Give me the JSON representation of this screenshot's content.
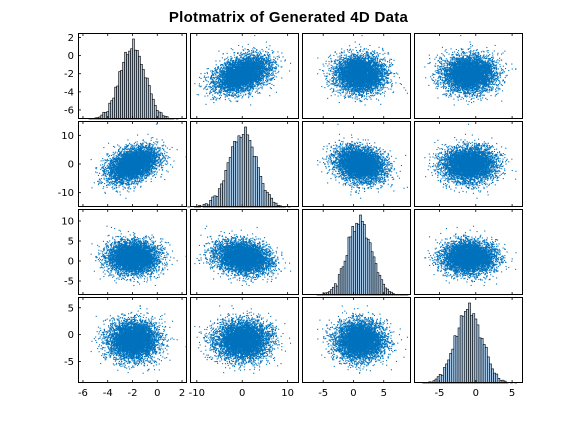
{
  "title": "Plotmatrix of Generated 4D Data",
  "colors": {
    "scatter": "#0072bd",
    "hist_fill": "#a6c8e8",
    "hist_edge": "#000000",
    "axis": "#000000",
    "background": "#ffffff"
  },
  "chart_data": {
    "type": "scatter",
    "title": "Plotmatrix of Generated 4D Data",
    "grid": false,
    "legend": "none",
    "variables": [
      {
        "mean": -2,
        "sd": 1.0,
        "xlim": [
          -6.4,
          2.4
        ],
        "xticks": [
          "-6",
          "-4",
          "-2",
          "0",
          "2"
        ],
        "ylim": [
          -7,
          2.5
        ],
        "yticks": [
          "2",
          "0",
          "-2",
          "-4",
          "-6"
        ]
      },
      {
        "mean": 0,
        "sd": 3.0,
        "xlim": [
          -11.5,
          12.5
        ],
        "xticks": [
          "-10",
          "0",
          "10"
        ],
        "ylim": [
          -15,
          15
        ],
        "yticks": [
          "10",
          "0",
          "-10"
        ]
      },
      {
        "mean": 1,
        "sd": 2.0,
        "xlim": [
          -8.5,
          9.5
        ],
        "xticks": [
          "-5",
          "0",
          "5"
        ],
        "ylim": [
          -8.5,
          13
        ],
        "yticks": [
          "10",
          "5",
          "0",
          "-5"
        ]
      },
      {
        "mean": -1,
        "sd": 1.8,
        "xlim": [
          -8.5,
          6.5
        ],
        "xticks": [
          "-5",
          "0",
          "5"
        ],
        "ylim": [
          -9,
          7
        ],
        "yticks": [
          "5",
          "0",
          "-5"
        ]
      }
    ],
    "correlations": [
      [
        1,
        0.4,
        0,
        0
      ],
      [
        0.4,
        1,
        -0.2,
        0
      ],
      [
        0,
        -0.2,
        1,
        0
      ],
      [
        0,
        0,
        0,
        1
      ]
    ],
    "n_points": 5000,
    "histogram_bins": 50
  }
}
